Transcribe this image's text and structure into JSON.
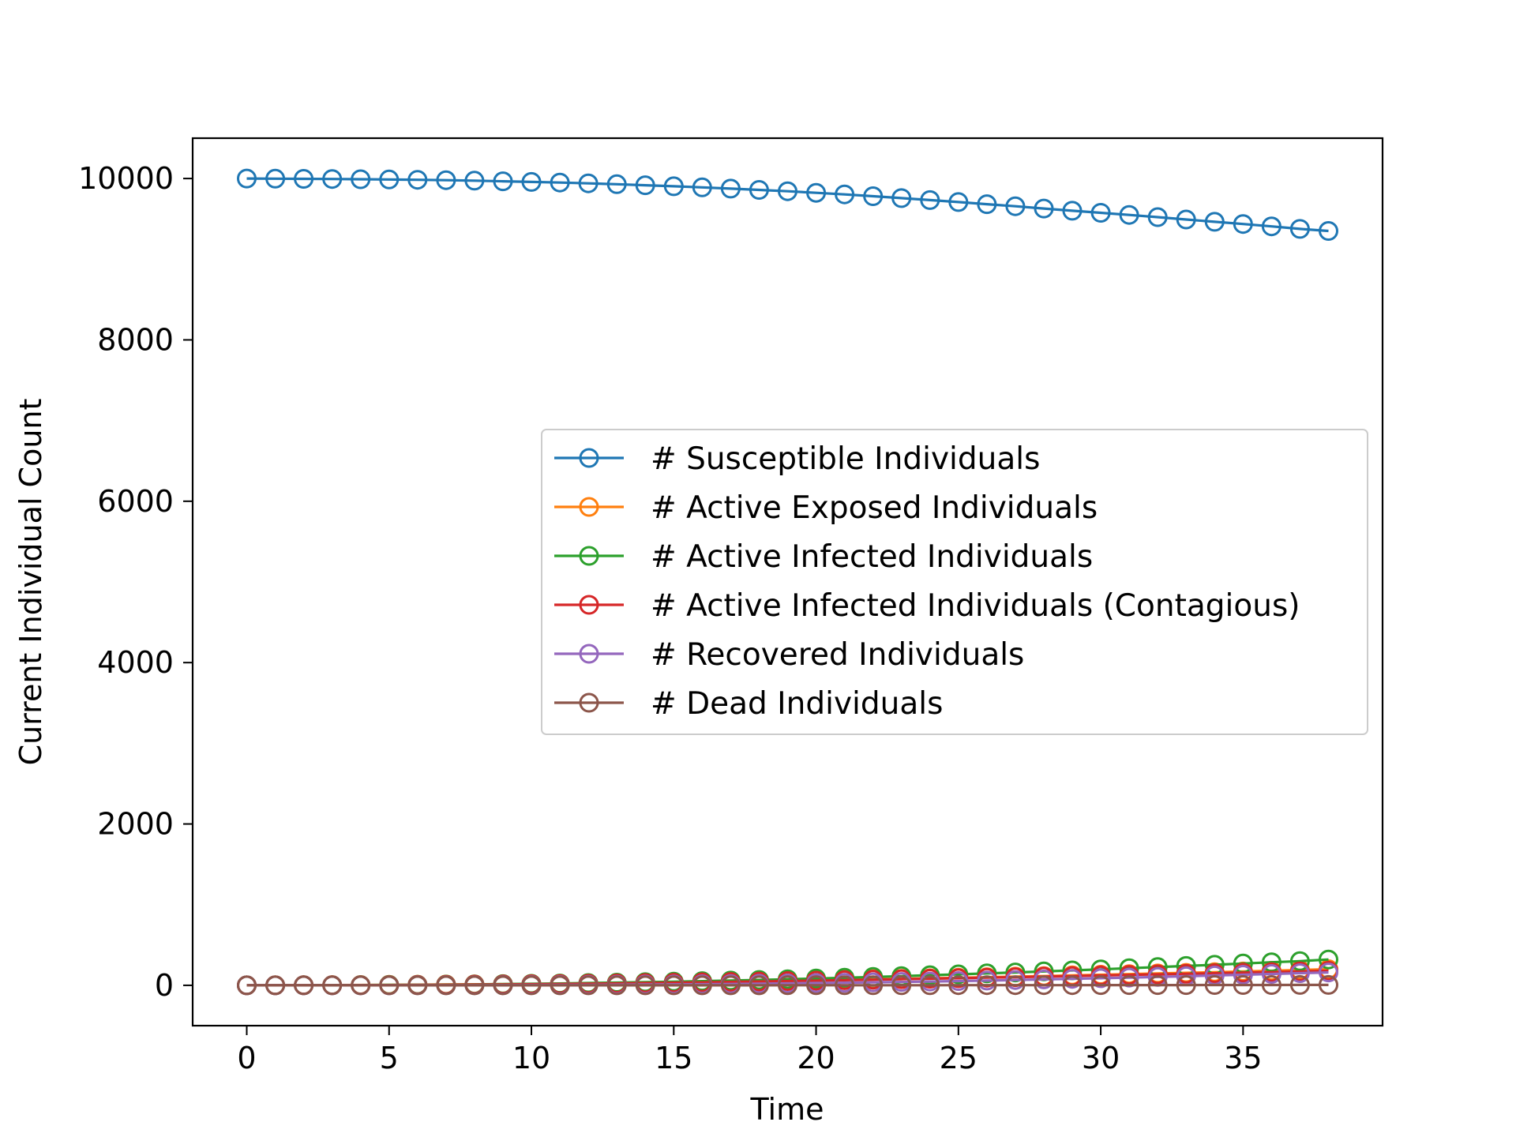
{
  "chart_data": {
    "type": "line",
    "title": "",
    "xlabel": "Time",
    "ylabel": "Current Individual Count",
    "xlim": [
      -1.9,
      39.9
    ],
    "ylim": [
      -500,
      10500
    ],
    "xticks": [
      0,
      5,
      10,
      15,
      20,
      25,
      30,
      35
    ],
    "yticks": [
      0,
      2000,
      4000,
      6000,
      8000,
      10000
    ],
    "grid": false,
    "legend_position": "center-right",
    "marker": "open-circle",
    "x": [
      0,
      1,
      2,
      3,
      4,
      5,
      6,
      7,
      8,
      9,
      10,
      11,
      12,
      13,
      14,
      15,
      16,
      17,
      18,
      19,
      20,
      21,
      22,
      23,
      24,
      25,
      26,
      27,
      28,
      29,
      30,
      31,
      32,
      33,
      34,
      35,
      36,
      37,
      38
    ],
    "series": [
      {
        "name": "# Susceptible Individuals",
        "color": "#1f77b4",
        "values": [
          10000,
          9998,
          9996,
          9994,
          9991,
          9988,
          9984,
          9979,
          9973,
          9966,
          9958,
          9950,
          9940,
          9929,
          9917,
          9904,
          9890,
          9875,
          9859,
          9842,
          9823,
          9803,
          9781,
          9757,
          9733,
          9708,
          9682,
          9656,
          9628,
          9601,
          9575,
          9549,
          9521,
          9492,
          9464,
          9436,
          9407,
          9376,
          9350
        ]
      },
      {
        "name": "# Active Exposed Individuals",
        "color": "#ff7f0e",
        "values": [
          0,
          1,
          2,
          3,
          4,
          6,
          8,
          10,
          12,
          14,
          17,
          20,
          23,
          27,
          31,
          35,
          40,
          45,
          50,
          56,
          62,
          68,
          74,
          80,
          87,
          94,
          101,
          108,
          115,
          123,
          131,
          139,
          147,
          155,
          163,
          171,
          180,
          190,
          200
        ]
      },
      {
        "name": "# Active Infected Individuals",
        "color": "#2ca02c",
        "values": [
          0,
          0,
          1,
          2,
          3,
          5,
          7,
          9,
          12,
          15,
          19,
          23,
          28,
          33,
          39,
          45,
          52,
          59,
          67,
          75,
          84,
          94,
          104,
          114,
          125,
          136,
          148,
          160,
          172,
          185,
          198,
          212,
          226,
          240,
          255,
          270,
          286,
          300,
          320
        ]
      },
      {
        "name": "# Active Infected Individuals (Contagious)",
        "color": "#d62728",
        "values": [
          0,
          0,
          1,
          1,
          2,
          3,
          5,
          7,
          9,
          11,
          14,
          17,
          20,
          24,
          28,
          32,
          37,
          42,
          47,
          53,
          58,
          64,
          70,
          76,
          82,
          88,
          95,
          101,
          108,
          115,
          122,
          129,
          136,
          143,
          150,
          157,
          164,
          172,
          180
        ]
      },
      {
        "name": "# Recovered Individuals",
        "color": "#9467bd",
        "values": [
          0,
          0,
          0,
          0,
          0,
          0,
          1,
          1,
          2,
          3,
          4,
          5,
          6,
          8,
          10,
          12,
          14,
          17,
          20,
          24,
          28,
          32,
          37,
          42,
          47,
          53,
          59,
          66,
          73,
          80,
          88,
          96,
          104,
          113,
          122,
          131,
          141,
          151,
          160
        ]
      },
      {
        "name": "# Dead Individuals",
        "color": "#8c564b",
        "values": [
          0,
          0,
          0,
          0,
          0,
          0,
          0,
          0,
          0,
          0,
          0,
          0,
          0,
          0,
          0,
          0,
          0,
          0,
          0,
          1,
          1,
          1,
          1,
          1,
          1,
          2,
          2,
          2,
          2,
          2,
          3,
          3,
          3,
          3,
          4,
          4,
          4,
          5,
          5
        ]
      }
    ]
  }
}
